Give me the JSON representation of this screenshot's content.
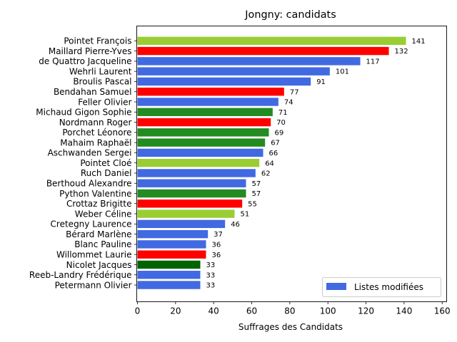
{
  "chart_data": {
    "type": "bar",
    "orientation": "horizontal",
    "title": "Jongny: candidats",
    "xlabel": "Suffrages des Candidats",
    "ylabel": "",
    "xlim": [
      0,
      162
    ],
    "x_ticks": [
      0,
      20,
      40,
      60,
      80,
      100,
      120,
      140,
      160
    ],
    "grid": false,
    "legend": {
      "placement": "lower-right",
      "entries": [
        {
          "label": "Listes modifiées",
          "color": "#4169e1"
        }
      ]
    },
    "bars": [
      {
        "name": "Pointet François",
        "value": 141,
        "color": "#9acd32"
      },
      {
        "name": "Maillard Pierre-Yves",
        "value": 132,
        "color": "#ff0000"
      },
      {
        "name": "de Quattro Jacqueline",
        "value": 117,
        "color": "#4169e1"
      },
      {
        "name": "Wehrli Laurent",
        "value": 101,
        "color": "#4169e1"
      },
      {
        "name": "Broulis Pascal",
        "value": 91,
        "color": "#4169e1"
      },
      {
        "name": "Bendahan Samuel",
        "value": 77,
        "color": "#ff0000"
      },
      {
        "name": "Feller Olivier",
        "value": 74,
        "color": "#4169e1"
      },
      {
        "name": "Michaud Gigon Sophie",
        "value": 71,
        "color": "#228b22"
      },
      {
        "name": "Nordmann Roger",
        "value": 70,
        "color": "#ff0000"
      },
      {
        "name": "Porchet Léonore",
        "value": 69,
        "color": "#228b22"
      },
      {
        "name": "Mahaim Raphaël",
        "value": 67,
        "color": "#228b22"
      },
      {
        "name": "Aschwanden Sergei",
        "value": 66,
        "color": "#4169e1"
      },
      {
        "name": "Pointet Cloé",
        "value": 64,
        "color": "#9acd32"
      },
      {
        "name": "Ruch Daniel",
        "value": 62,
        "color": "#4169e1"
      },
      {
        "name": "Berthoud Alexandre",
        "value": 57,
        "color": "#4169e1"
      },
      {
        "name": "Python Valentine",
        "value": 57,
        "color": "#228b22"
      },
      {
        "name": "Crottaz Brigitte",
        "value": 55,
        "color": "#ff0000"
      },
      {
        "name": "Weber Céline",
        "value": 51,
        "color": "#9acd32"
      },
      {
        "name": "Cretegny Laurence",
        "value": 46,
        "color": "#4169e1"
      },
      {
        "name": "Bérard Marlène",
        "value": 37,
        "color": "#4169e1"
      },
      {
        "name": "Blanc Pauline",
        "value": 36,
        "color": "#4169e1"
      },
      {
        "name": "Willommet Laurie",
        "value": 36,
        "color": "#ff0000"
      },
      {
        "name": "Nicolet Jacques",
        "value": 33,
        "color": "#006400"
      },
      {
        "name": "Reeb-Landry Frédérique",
        "value": 33,
        "color": "#4169e1"
      },
      {
        "name": "Petermann Olivier",
        "value": 33,
        "color": "#4169e1"
      }
    ]
  }
}
